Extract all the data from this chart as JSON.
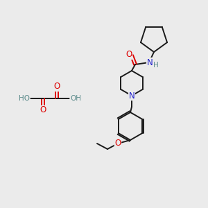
{
  "bg_color": "#ebebeb",
  "atom_colors": {
    "C": "#000000",
    "N": "#2020cc",
    "O": "#dd0000",
    "H": "#5a8a8a"
  },
  "bond_color": "#1a1a1a",
  "bond_width": 1.4,
  "font_size_atoms": 8.5,
  "font_size_small": 7.5
}
